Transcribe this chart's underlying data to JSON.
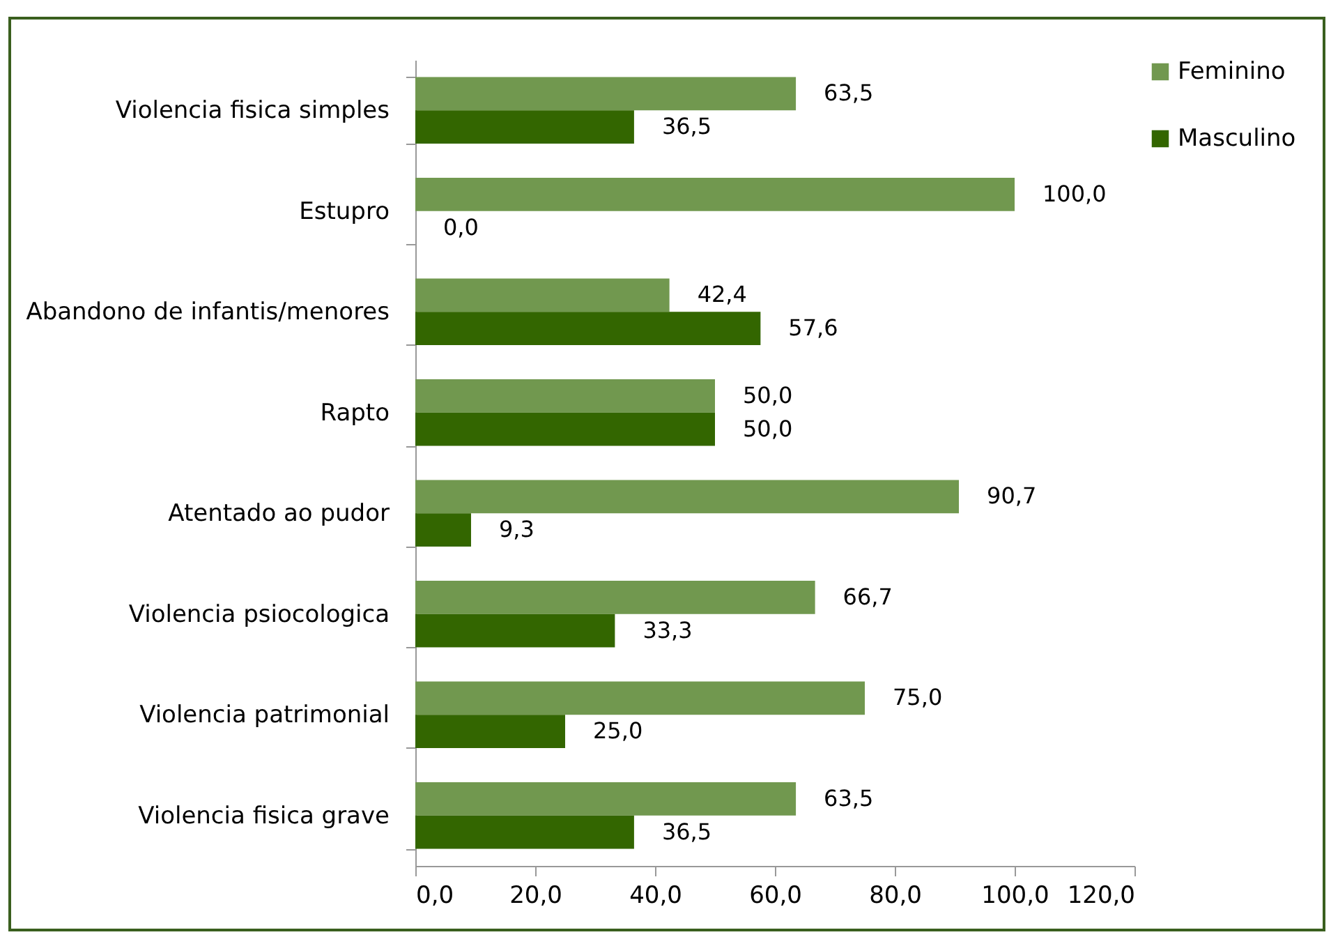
{
  "chart_data": {
    "type": "bar",
    "orientation": "horizontal",
    "categories": [
      "Violencia fisica simples",
      "Estupro",
      "Abandono de infantis/menores",
      "Rapto",
      "Atentado ao pudor",
      "Violencia psiocologica",
      "Violencia patrimonial",
      "Violencia fisica grave"
    ],
    "series": [
      {
        "name": "Feminino",
        "color": "#71984f",
        "values": [
          63.5,
          100.0,
          42.4,
          50.0,
          90.7,
          66.7,
          75.0,
          63.5
        ],
        "value_labels": [
          "63,5",
          "100,0",
          "42,4",
          "50,0",
          "90,7",
          "66,7",
          "75,0",
          "63,5"
        ]
      },
      {
        "name": "Masculino",
        "color": "#336600",
        "values": [
          36.5,
          0.0,
          57.6,
          50.0,
          9.3,
          33.3,
          25.0,
          36.5
        ],
        "value_labels": [
          "36,5",
          "0,0",
          "57,6",
          "50,0",
          "9,3",
          "33,3",
          "25,0",
          "36,5"
        ]
      }
    ],
    "xlim": [
      0,
      120
    ],
    "xticks": [
      {
        "value": 0,
        "label": "0,0"
      },
      {
        "value": 20,
        "label": "20,0"
      },
      {
        "value": 40,
        "label": "40,0"
      },
      {
        "value": 60,
        "label": "60,0"
      },
      {
        "value": 80,
        "label": "80,0"
      },
      {
        "value": 100,
        "label": "100,0"
      },
      {
        "value": 120,
        "label": "120,0"
      }
    ],
    "grid": false,
    "legend": "right"
  }
}
